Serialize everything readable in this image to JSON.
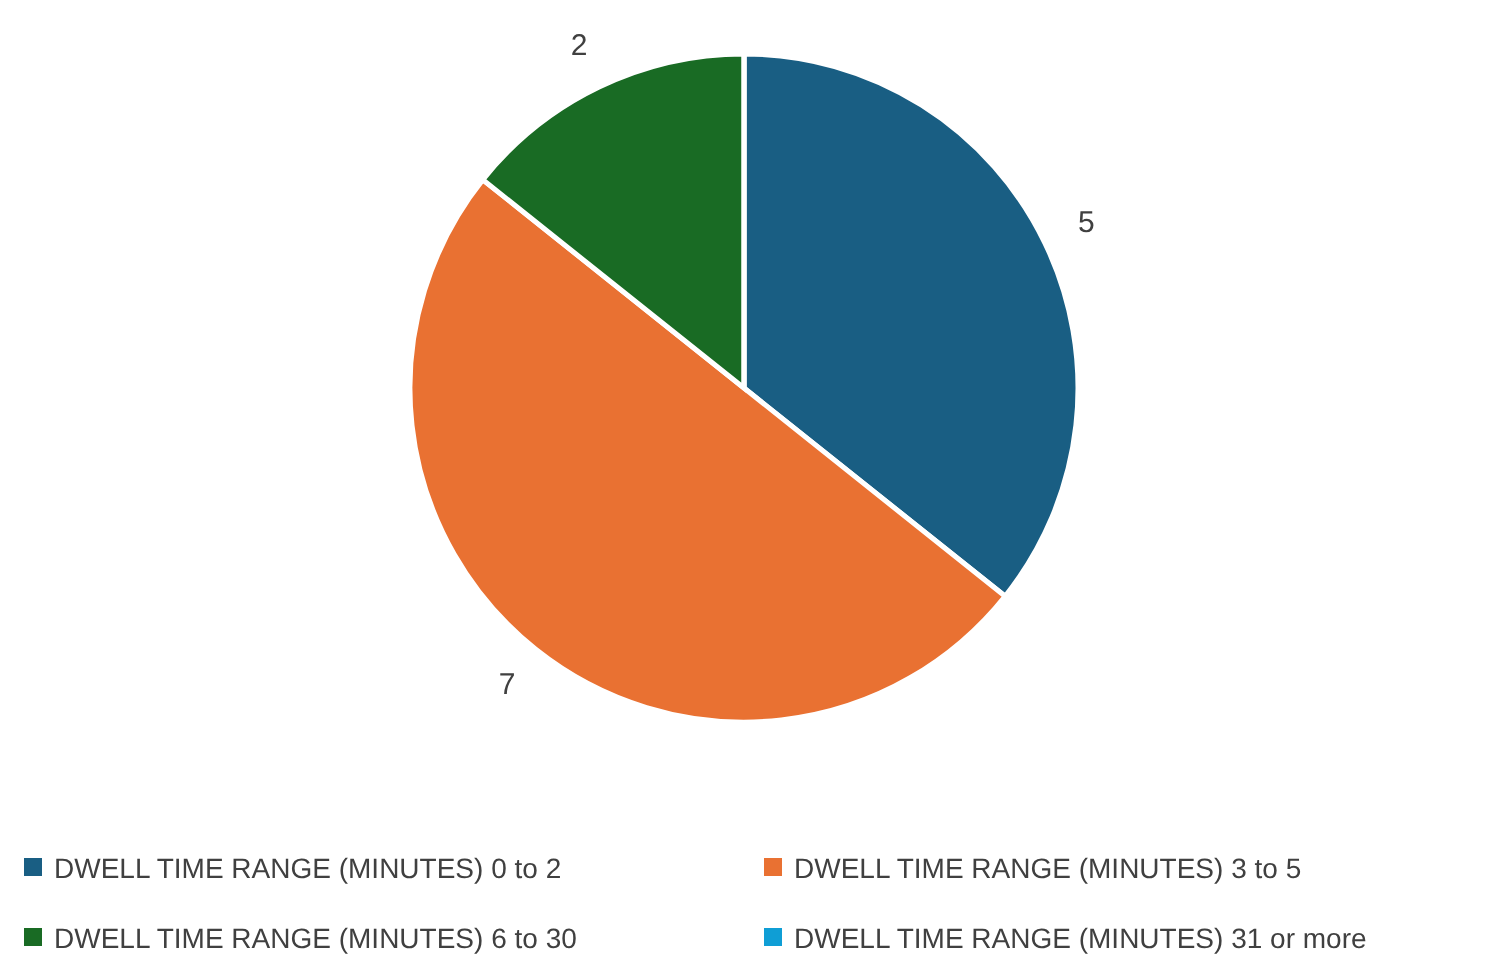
{
  "chart_data": {
    "type": "pie",
    "categories": [
      "DWELL TIME RANGE (MINUTES) 0 to 2",
      "DWELL TIME RANGE (MINUTES) 3 to 5",
      "DWELL TIME RANGE (MINUTES) 6 to 30",
      "DWELL TIME RANGE (MINUTES) 31 or more"
    ],
    "values": [
      5,
      7,
      2,
      0
    ],
    "colors": [
      "#195e83",
      "#e97132",
      "#196b24",
      "#0f9ed5"
    ],
    "value_labels": [
      "5",
      "7",
      "2",
      null
    ],
    "legend": "bottom"
  }
}
